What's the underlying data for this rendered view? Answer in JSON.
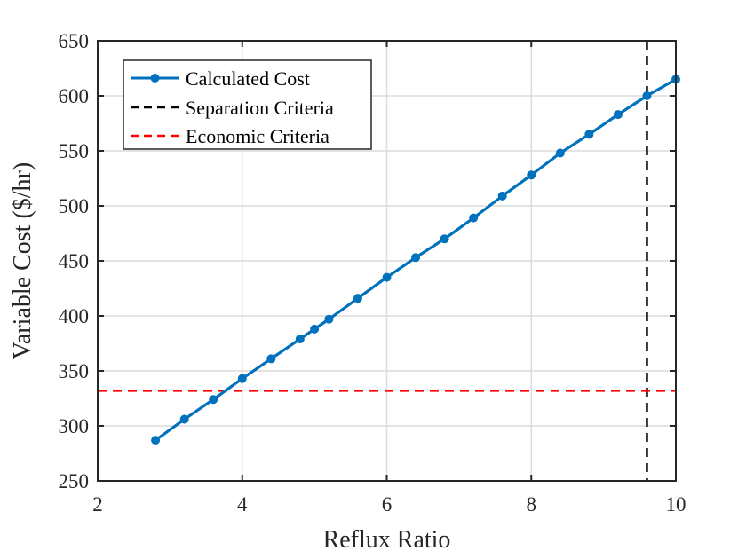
{
  "chart_data": {
    "type": "line",
    "xlabel": "Reflux Ratio",
    "ylabel": "Variable Cost ($/hr)",
    "xlim": [
      2,
      10
    ],
    "ylim": [
      250,
      650
    ],
    "xticks": [
      2,
      4,
      6,
      8,
      10
    ],
    "yticks": [
      250,
      300,
      350,
      400,
      450,
      500,
      550,
      600,
      650
    ],
    "grid": true,
    "legend_position": "top-left",
    "series": [
      {
        "name": "Calculated Cost",
        "color": "#0072BD",
        "style": "solid",
        "marker": "circle",
        "x": [
          2.8,
          3.2,
          3.6,
          4.0,
          4.4,
          4.8,
          5.0,
          5.2,
          5.6,
          6.0,
          6.4,
          6.8,
          7.2,
          7.6,
          8.0,
          8.4,
          8.8,
          9.2,
          9.6,
          10.0
        ],
        "y": [
          287,
          306,
          324,
          343,
          361,
          379,
          388,
          397,
          416,
          435,
          453,
          470,
          489,
          509,
          528,
          548,
          565,
          583,
          600,
          615
        ]
      },
      {
        "name": "Separation Criteria",
        "color": "#000000",
        "style": "dashed",
        "orientation": "vertical",
        "x": 9.6
      },
      {
        "name": "Economic Criteria",
        "color": "#FF0000",
        "style": "dashed",
        "orientation": "horizontal",
        "y": 332
      }
    ]
  }
}
